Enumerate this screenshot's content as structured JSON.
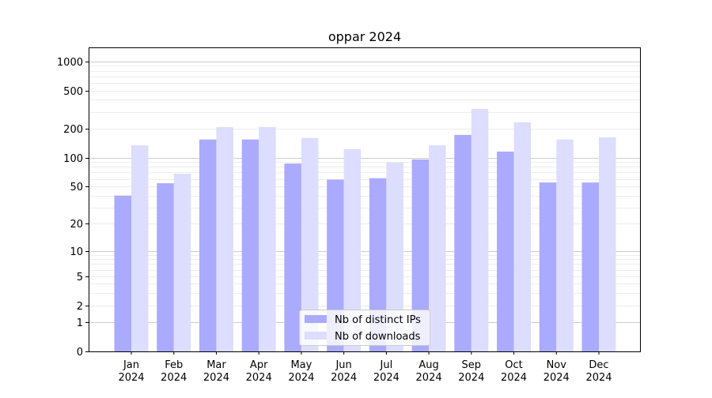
{
  "chart_data": {
    "type": "bar",
    "title": "oppar 2024",
    "xlabel": "",
    "ylabel": "",
    "yscale": "log10(1+y)",
    "ylim": [
      0,
      1400
    ],
    "yticks": [
      0,
      1,
      2,
      5,
      10,
      20,
      50,
      100,
      200,
      500,
      1000
    ],
    "grid": true,
    "legend_position": "bottom-center",
    "categories": [
      "Jan\n2024",
      "Feb\n2024",
      "Mar\n2024",
      "Apr\n2024",
      "May\n2024",
      "Jun\n2024",
      "Jul\n2024",
      "Aug\n2024",
      "Sep\n2024",
      "Oct\n2024",
      "Nov\n2024",
      "Dec\n2024"
    ],
    "category_labels": [
      [
        "Jan",
        "2024"
      ],
      [
        "Feb",
        "2024"
      ],
      [
        "Mar",
        "2024"
      ],
      [
        "Apr",
        "2024"
      ],
      [
        "May",
        "2024"
      ],
      [
        "Jun",
        "2024"
      ],
      [
        "Jul",
        "2024"
      ],
      [
        "Aug",
        "2024"
      ],
      [
        "Sep",
        "2024"
      ],
      [
        "Oct",
        "2024"
      ],
      [
        "Nov",
        "2024"
      ],
      [
        "Dec",
        "2024"
      ]
    ],
    "series": [
      {
        "name": "Nb of distinct IPs",
        "color": "#aaaaff",
        "values": [
          40,
          54,
          155,
          155,
          87,
          59,
          61,
          96,
          173,
          116,
          55,
          55
        ]
      },
      {
        "name": "Nb of downloads",
        "color": "#ddddff",
        "values": [
          135,
          68,
          209,
          209,
          161,
          123,
          89,
          135,
          323,
          234,
          155,
          163
        ]
      }
    ]
  }
}
